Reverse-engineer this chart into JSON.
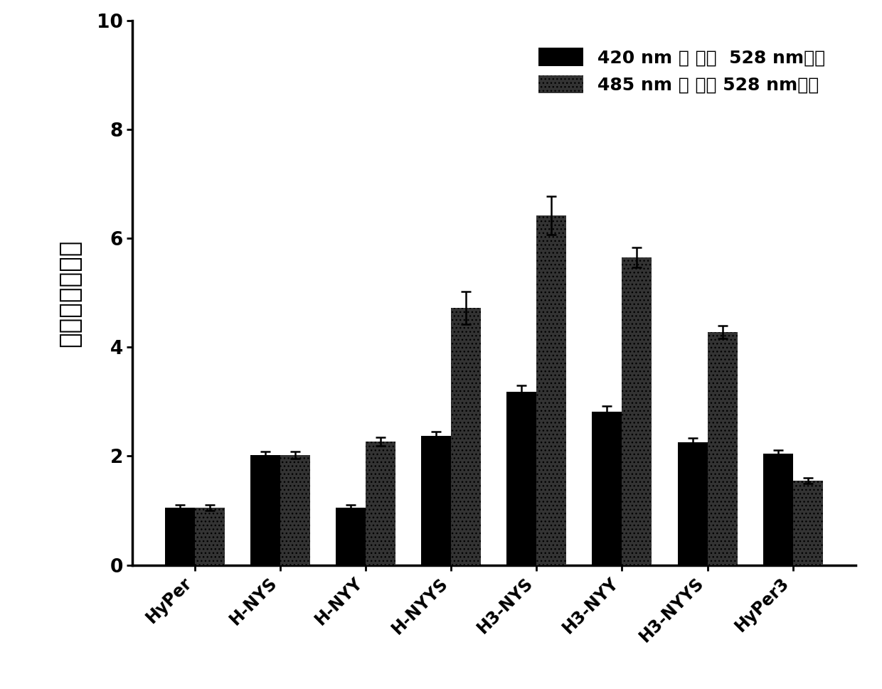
{
  "categories": [
    "HyPer",
    "H-NYS",
    "H-NYY",
    "H-NYYS",
    "H3-NYS",
    "H3-NYY",
    "H3-NYYS",
    "HyPer3"
  ],
  "series1_values": [
    1.05,
    2.02,
    1.05,
    2.37,
    3.18,
    2.82,
    2.25,
    2.04
  ],
  "series1_errors": [
    0.05,
    0.06,
    0.05,
    0.08,
    0.12,
    0.1,
    0.08,
    0.07
  ],
  "series2_values": [
    1.05,
    2.02,
    2.27,
    4.72,
    6.42,
    5.65,
    4.28,
    1.55
  ],
  "series2_errors": [
    0.05,
    0.06,
    0.08,
    0.3,
    0.35,
    0.18,
    0.12,
    0.05
  ],
  "series1_color": "#000000",
  "series2_color": "#333333",
  "series1_label": "420 nm 激 发，  528 nm发射",
  "series2_label": "485 nm 激 发， 528 nm发射",
  "ylabel": "荧光强度标准化",
  "ylim": [
    0,
    10
  ],
  "yticks": [
    0,
    2,
    4,
    6,
    8,
    10
  ],
  "bar_width": 0.35,
  "legend_fontsize": 18,
  "ylabel_fontsize": 26,
  "tick_fontsize": 17,
  "background_color": "#ffffff",
  "figwidth": 12.4,
  "figheight": 9.69,
  "dpi": 100
}
